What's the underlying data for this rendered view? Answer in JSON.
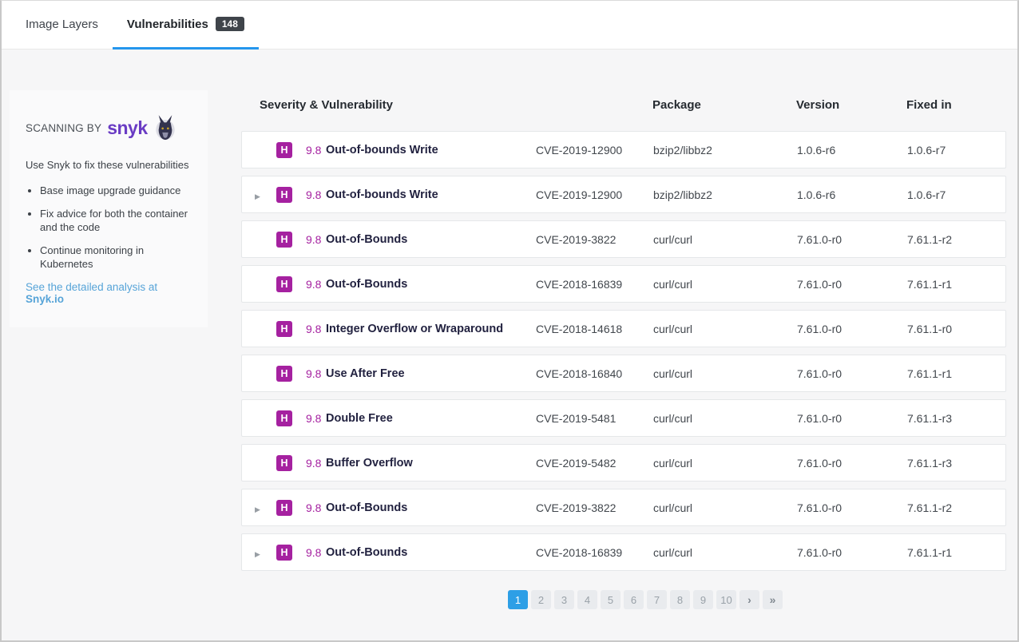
{
  "tabs": [
    {
      "label": "Image Layers",
      "active": false
    },
    {
      "label": "Vulnerabilities",
      "count": "148",
      "active": true
    }
  ],
  "sidebar": {
    "scanning_by": "SCANNING BY",
    "logo_text": "snyk",
    "logo_icon": "snyk-dog-icon",
    "intro": "Use Snyk to fix these vulnerabilities",
    "bullets": [
      "Base image upgrade guidance",
      "Fix advice for both the container and the code",
      "Continue monitoring in Kubernetes"
    ],
    "link_text": "See the detailed analysis at",
    "link_target": "Snyk.io"
  },
  "table": {
    "headers": {
      "severity": "Severity & Vulnerability",
      "package": "Package",
      "version": "Version",
      "fixed": "Fixed in"
    },
    "rows": [
      {
        "expandable": false,
        "severity": "H",
        "score": "9.8",
        "name": "Out-of-bounds Write",
        "cve": "CVE-2019-12900",
        "package": "bzip2/libbz2",
        "version": "1.0.6-r6",
        "fixed": "1.0.6-r7"
      },
      {
        "expandable": true,
        "severity": "H",
        "score": "9.8",
        "name": "Out-of-bounds Write",
        "cve": "CVE-2019-12900",
        "package": "bzip2/libbz2",
        "version": "1.0.6-r6",
        "fixed": "1.0.6-r7"
      },
      {
        "expandable": false,
        "severity": "H",
        "score": "9.8",
        "name": "Out-of-Bounds",
        "cve": "CVE-2019-3822",
        "package": "curl/curl",
        "version": "7.61.0-r0",
        "fixed": "7.61.1-r2"
      },
      {
        "expandable": false,
        "severity": "H",
        "score": "9.8",
        "name": "Out-of-Bounds",
        "cve": "CVE-2018-16839",
        "package": "curl/curl",
        "version": "7.61.0-r0",
        "fixed": "7.61.1-r1"
      },
      {
        "expandable": false,
        "severity": "H",
        "score": "9.8",
        "name": "Integer Overflow or Wraparound",
        "cve": "CVE-2018-14618",
        "package": "curl/curl",
        "version": "7.61.0-r0",
        "fixed": "7.61.1-r0"
      },
      {
        "expandable": false,
        "severity": "H",
        "score": "9.8",
        "name": "Use After Free",
        "cve": "CVE-2018-16840",
        "package": "curl/curl",
        "version": "7.61.0-r0",
        "fixed": "7.61.1-r1"
      },
      {
        "expandable": false,
        "severity": "H",
        "score": "9.8",
        "name": "Double Free",
        "cve": "CVE-2019-5481",
        "package": "curl/curl",
        "version": "7.61.0-r0",
        "fixed": "7.61.1-r3"
      },
      {
        "expandable": false,
        "severity": "H",
        "score": "9.8",
        "name": "Buffer Overflow",
        "cve": "CVE-2019-5482",
        "package": "curl/curl",
        "version": "7.61.0-r0",
        "fixed": "7.61.1-r3"
      },
      {
        "expandable": true,
        "severity": "H",
        "score": "9.8",
        "name": "Out-of-Bounds",
        "cve": "CVE-2019-3822",
        "package": "curl/curl",
        "version": "7.61.0-r0",
        "fixed": "7.61.1-r2"
      },
      {
        "expandable": true,
        "severity": "H",
        "score": "9.8",
        "name": "Out-of-Bounds",
        "cve": "CVE-2018-16839",
        "package": "curl/curl",
        "version": "7.61.0-r0",
        "fixed": "7.61.1-r1"
      }
    ]
  },
  "pagination": {
    "pages": [
      "1",
      "2",
      "3",
      "4",
      "5",
      "6",
      "7",
      "8",
      "9",
      "10"
    ],
    "active_page": "1",
    "next_label": "›",
    "last_label": "»"
  },
  "icons": {
    "expand_caret": "▶"
  },
  "colors": {
    "accent_blue": "#2496ed",
    "pagination_active": "#2d9fe6",
    "severity_high": "#a521a0",
    "snyk_purple": "#6a3cc4",
    "count_badge_bg": "#3f444a"
  }
}
